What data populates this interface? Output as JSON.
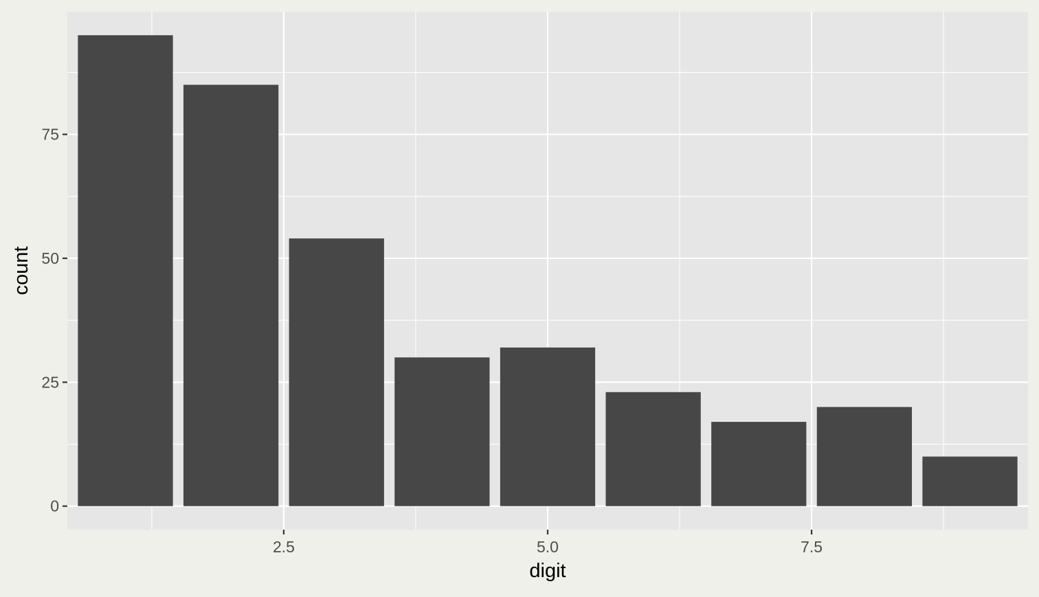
{
  "chart_data": {
    "type": "bar",
    "title": "",
    "xlabel": "digit",
    "ylabel": "count",
    "x": [
      1,
      2,
      3,
      4,
      5,
      6,
      7,
      8,
      9
    ],
    "values": [
      95,
      85,
      54,
      30,
      32,
      23,
      17,
      20,
      10
    ],
    "xlim": [
      0.45,
      9.55
    ],
    "ylim": [
      -4.75,
      99.75
    ],
    "x_ticks": [
      2.5,
      5.0,
      7.5
    ],
    "x_tick_labels": [
      "2.5",
      "5.0",
      "7.5"
    ],
    "y_ticks": [
      0,
      25,
      50,
      75
    ],
    "y_tick_labels": [
      "0",
      "25",
      "50",
      "75"
    ],
    "grid": true,
    "legend": "none",
    "colors": {
      "bar": "#474747",
      "panel": "#e6e6e6",
      "background": "#f0f0ea",
      "grid_major": "#ffffff",
      "text_tick": "#4d4d4d",
      "text_label": "#000000"
    }
  }
}
